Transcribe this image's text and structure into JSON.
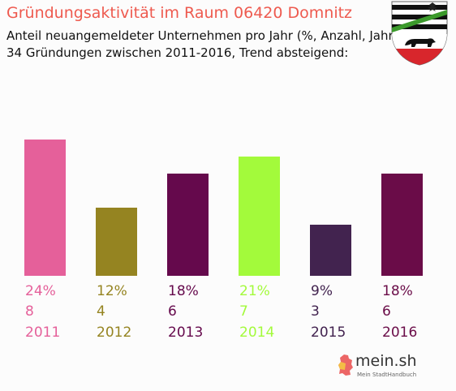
{
  "header": {
    "title": "Gründungsaktivität im Raum 06420 Domnitz",
    "subtitle_line1": "Anteil neuangemeldeter Unternehmen pro Jahr (%, Anzahl, Jahr)",
    "subtitle_line2": "34 Gründungen zwischen 2011-2016, Trend absteigend:"
  },
  "logo": {
    "name": "mein.sh",
    "tagline": "Mein StadtHandbuch",
    "icon": "germany-map-icon"
  },
  "crest": {
    "icon": "coat-of-arms-icon"
  },
  "chart_data": {
    "type": "bar",
    "categories": [
      "2011",
      "2012",
      "2013",
      "2014",
      "2015",
      "2016"
    ],
    "percent_labels": [
      "24%",
      "12%",
      "18%",
      "21%",
      "9%",
      "18%"
    ],
    "counts": [
      8,
      4,
      6,
      7,
      3,
      6
    ],
    "values": [
      24,
      12,
      18,
      21,
      9,
      18
    ],
    "colors": [
      "#e5609a",
      "#958421",
      "#65094c",
      "#a3fa3b",
      "#42234f",
      "#6a0c48"
    ],
    "ylim": [
      0,
      24
    ]
  }
}
